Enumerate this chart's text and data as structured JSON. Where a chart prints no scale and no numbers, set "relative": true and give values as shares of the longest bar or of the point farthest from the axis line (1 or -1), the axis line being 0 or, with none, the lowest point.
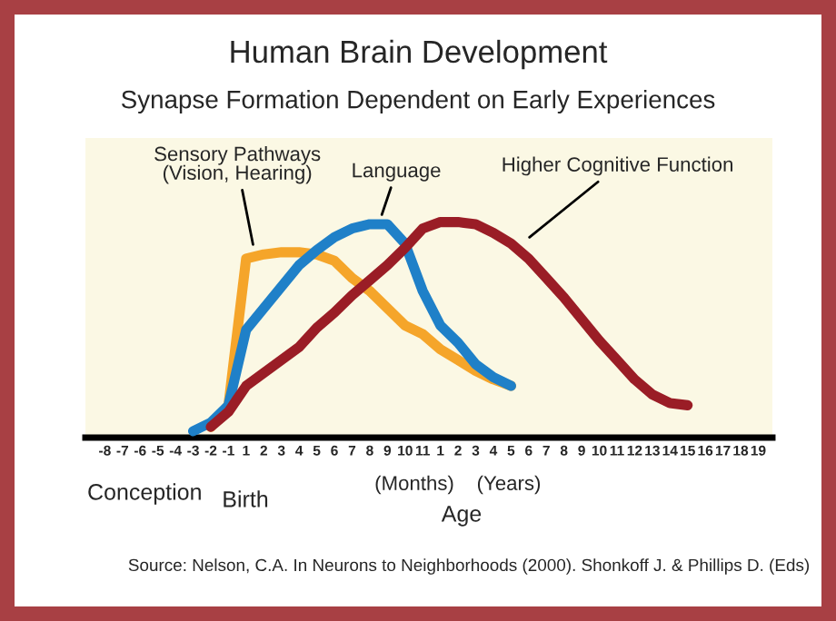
{
  "chart_data": {
    "type": "line",
    "relative": true,
    "title": "Human Brain Development",
    "subtitle": "Synapse Formation Dependent on Early Experiences",
    "categories": [
      "-8",
      "-7",
      "-6",
      "-5",
      "-4",
      "-3",
      "-2",
      "-1",
      "1",
      "2",
      "3",
      "4",
      "5",
      "6",
      "7",
      "8",
      "9",
      "10",
      "11",
      "1",
      "2",
      "3",
      "4",
      "5",
      "6",
      "7",
      "8",
      "9",
      "10",
      "11",
      "12",
      "13",
      "14",
      "15",
      "16",
      "17",
      "18",
      "19"
    ],
    "series": [
      {
        "name": "Sensory Pathways\n(Vision, Hearing)",
        "color": "#f5a52a",
        "values": [
          null,
          null,
          null,
          null,
          null,
          null,
          0.05,
          0.15,
          0.83,
          0.85,
          0.86,
          0.86,
          0.85,
          0.82,
          0.74,
          0.68,
          0.6,
          0.52,
          0.48,
          0.41,
          0.36,
          0.31,
          0.27,
          0.24,
          null,
          null,
          null,
          null,
          null,
          null,
          null,
          null,
          null,
          null,
          null,
          null,
          null,
          null
        ]
      },
      {
        "name": "Language",
        "color": "#1f80c8",
        "values": [
          null,
          null,
          null,
          null,
          null,
          0.03,
          0.07,
          0.15,
          0.5,
          0.6,
          0.7,
          0.8,
          0.87,
          0.93,
          0.97,
          0.99,
          0.99,
          0.9,
          0.68,
          0.52,
          0.44,
          0.34,
          0.28,
          0.24,
          null,
          null,
          null,
          null,
          null,
          null,
          null,
          null,
          null,
          null,
          null,
          null,
          null,
          null
        ]
      },
      {
        "name": "Higher Cognitive Function",
        "color": "#9a1d26",
        "values": [
          null,
          null,
          null,
          null,
          null,
          null,
          0.05,
          0.12,
          0.24,
          0.3,
          0.36,
          0.42,
          0.51,
          0.58,
          0.66,
          0.73,
          0.8,
          0.88,
          0.97,
          1.0,
          1.0,
          0.99,
          0.95,
          0.9,
          0.83,
          0.74,
          0.65,
          0.55,
          0.45,
          0.36,
          0.27,
          0.2,
          0.16,
          0.15,
          null,
          null,
          null,
          null
        ]
      }
    ],
    "annotations": [
      "Conception",
      "Birth",
      "(Months)",
      "(Years)",
      "Age",
      "Source: Nelson, C.A. In Neurons to Neighborhoods (2000). Shonkoff J. & Phillips D. (Eds)"
    ],
    "grid": false,
    "legend": false,
    "marker": "none",
    "line_style": "solid"
  }
}
